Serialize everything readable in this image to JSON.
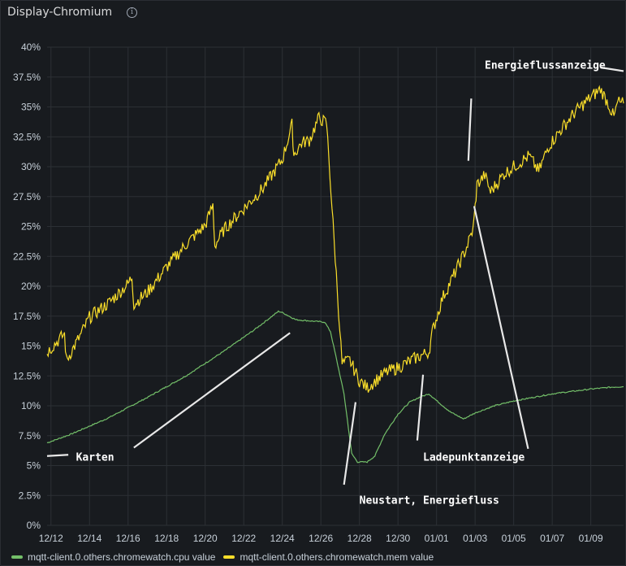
{
  "panel": {
    "title": "Display-Chromium",
    "info_icon": "info-icon"
  },
  "chart_data": {
    "type": "line",
    "title": "Display-Chromium",
    "ylim": [
      0,
      40
    ],
    "yunit": "%",
    "yticks": [
      {
        "v": 0,
        "label": "0%"
      },
      {
        "v": 2.5,
        "label": "2.5%"
      },
      {
        "v": 5,
        "label": "5%"
      },
      {
        "v": 7.5,
        "label": "7.5%"
      },
      {
        "v": 10,
        "label": "10%"
      },
      {
        "v": 12.5,
        "label": "12.5%"
      },
      {
        "v": 15,
        "label": "15%"
      },
      {
        "v": 17.5,
        "label": "17.5%"
      },
      {
        "v": 20,
        "label": "20%"
      },
      {
        "v": 22.5,
        "label": "22.5%"
      },
      {
        "v": 25,
        "label": "25%"
      },
      {
        "v": 27.5,
        "label": "27.5%"
      },
      {
        "v": 30,
        "label": "30%"
      },
      {
        "v": 32.5,
        "label": "32.5%"
      },
      {
        "v": 35,
        "label": "35%"
      },
      {
        "v": 37.5,
        "label": "37.5%"
      },
      {
        "v": 40,
        "label": "40%"
      }
    ],
    "xlim": [
      -0.2,
      29.7
    ],
    "xticks": [
      {
        "v": 0,
        "label": "12/12"
      },
      {
        "v": 2,
        "label": "12/14"
      },
      {
        "v": 4,
        "label": "12/16"
      },
      {
        "v": 6,
        "label": "12/18"
      },
      {
        "v": 8,
        "label": "12/20"
      },
      {
        "v": 10,
        "label": "12/22"
      },
      {
        "v": 12,
        "label": "12/24"
      },
      {
        "v": 14,
        "label": "12/26"
      },
      {
        "v": 16,
        "label": "12/28"
      },
      {
        "v": 18,
        "label": "12/30"
      },
      {
        "v": 20,
        "label": "01/01"
      },
      {
        "v": 22,
        "label": "01/03"
      },
      {
        "v": 24,
        "label": "01/05"
      },
      {
        "v": 26,
        "label": "01/07"
      },
      {
        "v": 28,
        "label": "01/09"
      }
    ],
    "series": [
      {
        "name": "mqtt-client.0.others.chromewatch.cpu value",
        "color": "#73bf69",
        "noise": 0.05,
        "points": [
          [
            -0.2,
            6.9
          ],
          [
            1,
            7.6
          ],
          [
            3,
            9.0
          ],
          [
            5,
            10.7
          ],
          [
            7,
            12.5
          ],
          [
            9,
            14.6
          ],
          [
            10.5,
            16.3
          ],
          [
            11.8,
            17.9
          ],
          [
            12,
            17.8
          ],
          [
            12.7,
            17.2
          ],
          [
            14.2,
            17.0
          ],
          [
            14.5,
            16.2
          ],
          [
            15.2,
            11.0
          ],
          [
            15.6,
            6.0
          ],
          [
            15.9,
            5.3
          ],
          [
            16.4,
            5.3
          ],
          [
            16.8,
            5.8
          ],
          [
            17.3,
            7.6
          ],
          [
            18.0,
            9.3
          ],
          [
            18.6,
            10.3
          ],
          [
            19.1,
            10.7
          ],
          [
            19.6,
            11.0
          ],
          [
            20.1,
            10.3
          ],
          [
            20.7,
            9.5
          ],
          [
            21.4,
            8.9
          ],
          [
            22.0,
            9.4
          ],
          [
            23.0,
            10.0
          ],
          [
            24.0,
            10.4
          ],
          [
            25.0,
            10.7
          ],
          [
            26.0,
            11.0
          ],
          [
            27.0,
            11.2
          ],
          [
            28.0,
            11.4
          ],
          [
            29.0,
            11.55
          ],
          [
            29.7,
            11.6
          ]
        ]
      },
      {
        "name": "mqtt-client.0.others.chromewatch.mem value",
        "color": "#fade2a",
        "noise": 0.55,
        "points": [
          [
            -0.2,
            14.5
          ],
          [
            0.7,
            16.0
          ],
          [
            0.8,
            13.8
          ],
          [
            1.5,
            15.8
          ],
          [
            2.0,
            17.4
          ],
          [
            3.0,
            18.6
          ],
          [
            4.0,
            20.2
          ],
          [
            4.2,
            20.8
          ],
          [
            4.3,
            18.5
          ],
          [
            5.0,
            19.5
          ],
          [
            6.0,
            21.6
          ],
          [
            7.0,
            23.5
          ],
          [
            8.0,
            25.1
          ],
          [
            8.4,
            26.8
          ],
          [
            8.5,
            23.4
          ],
          [
            9.0,
            24.8
          ],
          [
            10.0,
            26.5
          ],
          [
            11.0,
            28.2
          ],
          [
            12.0,
            30.6
          ],
          [
            12.5,
            33.5
          ],
          [
            12.6,
            31.0
          ],
          [
            13.0,
            32.0
          ],
          [
            13.4,
            32.2
          ],
          [
            13.9,
            34.1
          ],
          [
            14.3,
            33.6
          ],
          [
            14.8,
            21.0
          ],
          [
            15.1,
            13.5
          ],
          [
            15.5,
            13.8
          ],
          [
            16.0,
            12.1
          ],
          [
            16.4,
            11.5
          ],
          [
            16.9,
            12.2
          ],
          [
            17.4,
            12.8
          ],
          [
            18.0,
            13.2
          ],
          [
            18.8,
            13.9
          ],
          [
            19.6,
            14.5
          ],
          [
            19.8,
            16.3
          ],
          [
            20.3,
            19.0
          ],
          [
            20.8,
            20.6
          ],
          [
            21.5,
            23.0
          ],
          [
            21.9,
            24.8
          ],
          [
            22.1,
            28.5
          ],
          [
            22.5,
            29.3
          ],
          [
            22.8,
            27.9
          ],
          [
            23.5,
            29.4
          ],
          [
            24.0,
            30.0
          ],
          [
            24.8,
            30.9
          ],
          [
            25.3,
            29.6
          ],
          [
            25.8,
            31.7
          ],
          [
            26.5,
            33.2
          ],
          [
            27.2,
            34.6
          ],
          [
            28.0,
            35.8
          ],
          [
            28.5,
            36.5
          ],
          [
            28.9,
            35.3
          ],
          [
            29.2,
            34.1
          ],
          [
            29.4,
            35.4
          ],
          [
            29.7,
            35.3
          ]
        ]
      }
    ],
    "annotations": [
      {
        "text": "Karten",
        "x": 1.3,
        "y": 5.4
      },
      {
        "text": "Neustart, Energiefluss",
        "x": 16.0,
        "y": 1.8
      },
      {
        "text": "Ladepunktanzeige",
        "x": 19.3,
        "y": 5.4
      },
      {
        "text": "Energieflussanzeige",
        "x": 22.5,
        "y": 38.2
      }
    ],
    "annotation_lines": [
      [
        -0.2,
        5.8,
        0.9,
        5.9
      ],
      [
        4.3,
        6.5,
        12.4,
        16.1
      ],
      [
        15.2,
        3.4,
        15.8,
        10.3
      ],
      [
        19.0,
        7.1,
        19.3,
        12.6
      ],
      [
        21.65,
        30.5,
        21.8,
        35.7
      ],
      [
        21.95,
        26.7,
        24.75,
        6.4
      ],
      [
        28.5,
        38.3,
        29.7,
        38.0
      ]
    ]
  }
}
